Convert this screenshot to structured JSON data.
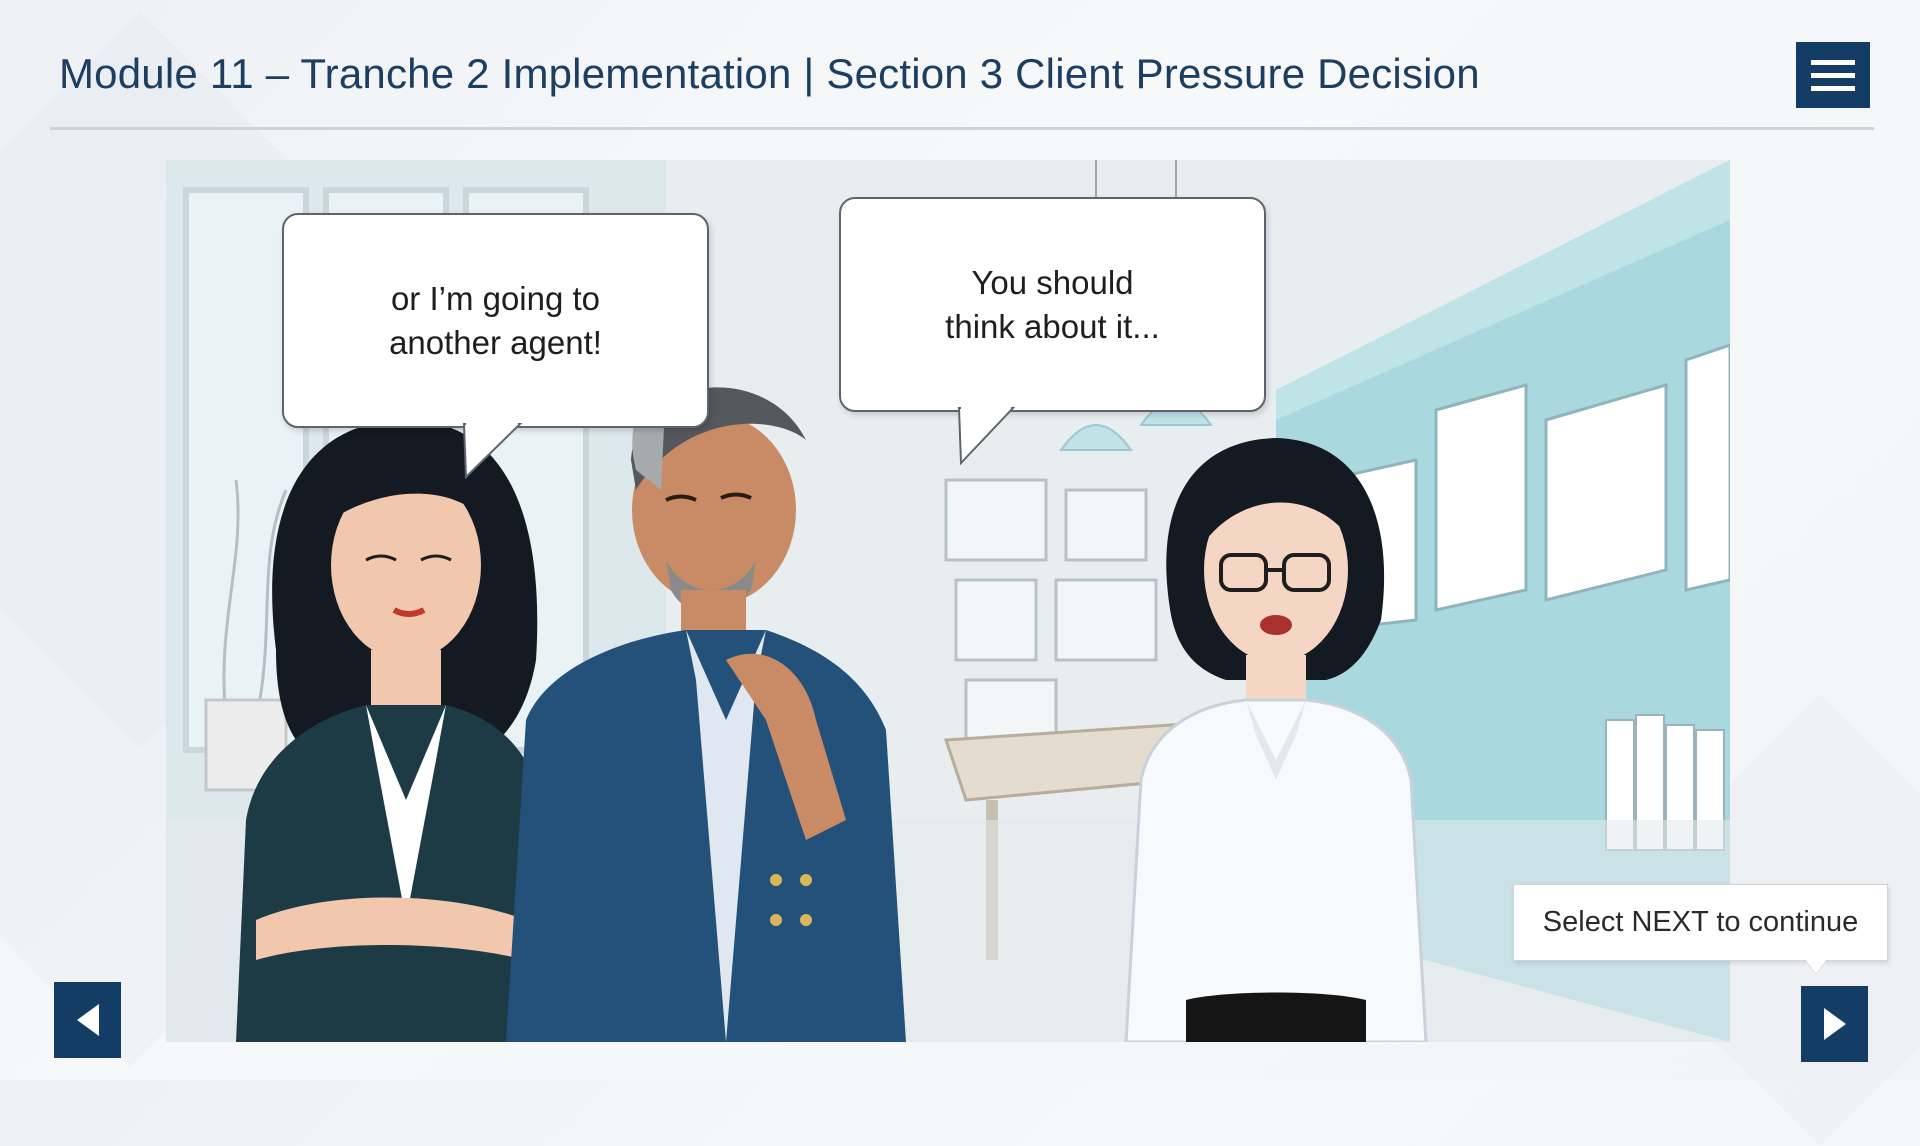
{
  "header": {
    "title": "Module 11 – Tranche 2 Implementation | Section 3 Client Pressure Decision",
    "menu_icon": "hamburger-menu-icon"
  },
  "scene": {
    "bubbles": [
      {
        "id": "client-woman",
        "text": "or I’m going to\nanother agent!"
      },
      {
        "id": "client-man",
        "text": "You should\nthink about it..."
      }
    ],
    "characters": [
      "client-woman",
      "client-man",
      "agent-woman"
    ]
  },
  "footer": {
    "prompt": "Select NEXT to continue",
    "prev_icon": "triangle-left-icon",
    "next_icon": "triangle-right-icon"
  },
  "colors": {
    "brand_navy": "#133d64",
    "title_text": "#1b3e61",
    "office_wall_teal": "#a9d9de"
  }
}
